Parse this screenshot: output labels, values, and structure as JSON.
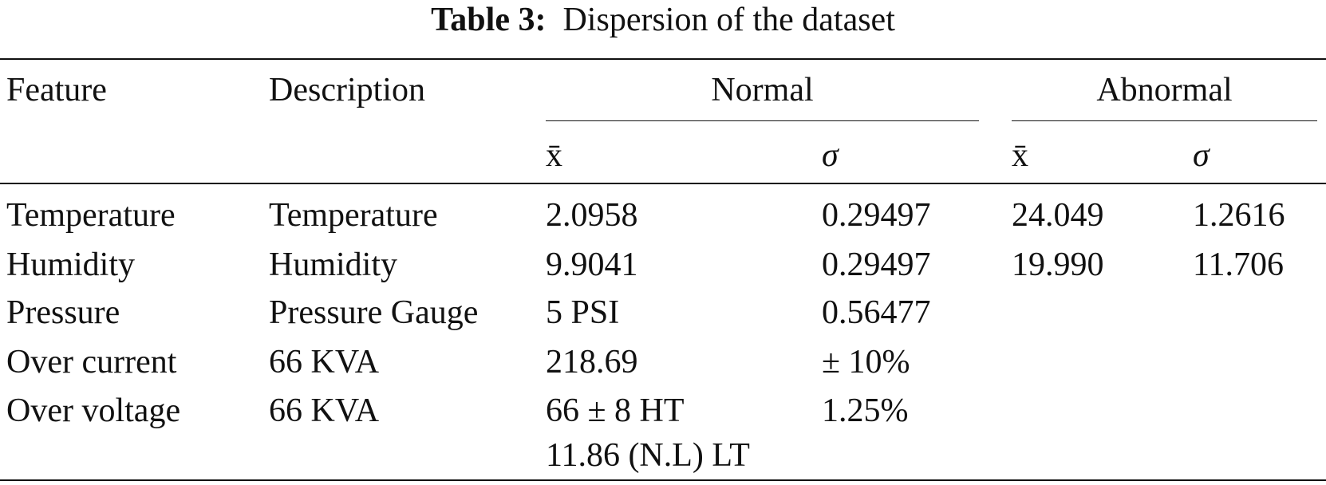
{
  "title": {
    "label": "Table 3:",
    "text": "Dispersion of the dataset"
  },
  "header": {
    "feature": "Feature",
    "description": "Description",
    "groups": [
      "Normal",
      "Abnormal"
    ],
    "subcolumns": [
      "x̄",
      "σ",
      "x̄",
      "σ"
    ]
  },
  "table": {
    "rows": [
      [
        "Temperature",
        "Temperature",
        "2.0958",
        "0.29497",
        "24.049",
        "1.2616"
      ],
      [
        "Humidity",
        "Humidity",
        "9.9041",
        "0.29497",
        "19.990",
        "11.706"
      ],
      [
        "Pressure",
        "Pressure Gauge",
        "5 PSI",
        "0.56477"
      ],
      [
        "Over current",
        "66 KVA",
        "218.69",
        "± 10%"
      ],
      [
        "Over voltage",
        "66 KVA",
        [
          "66 ± 8 HT",
          "11.86 (N.L) LT"
        ],
        "1.25%"
      ]
    ]
  }
}
